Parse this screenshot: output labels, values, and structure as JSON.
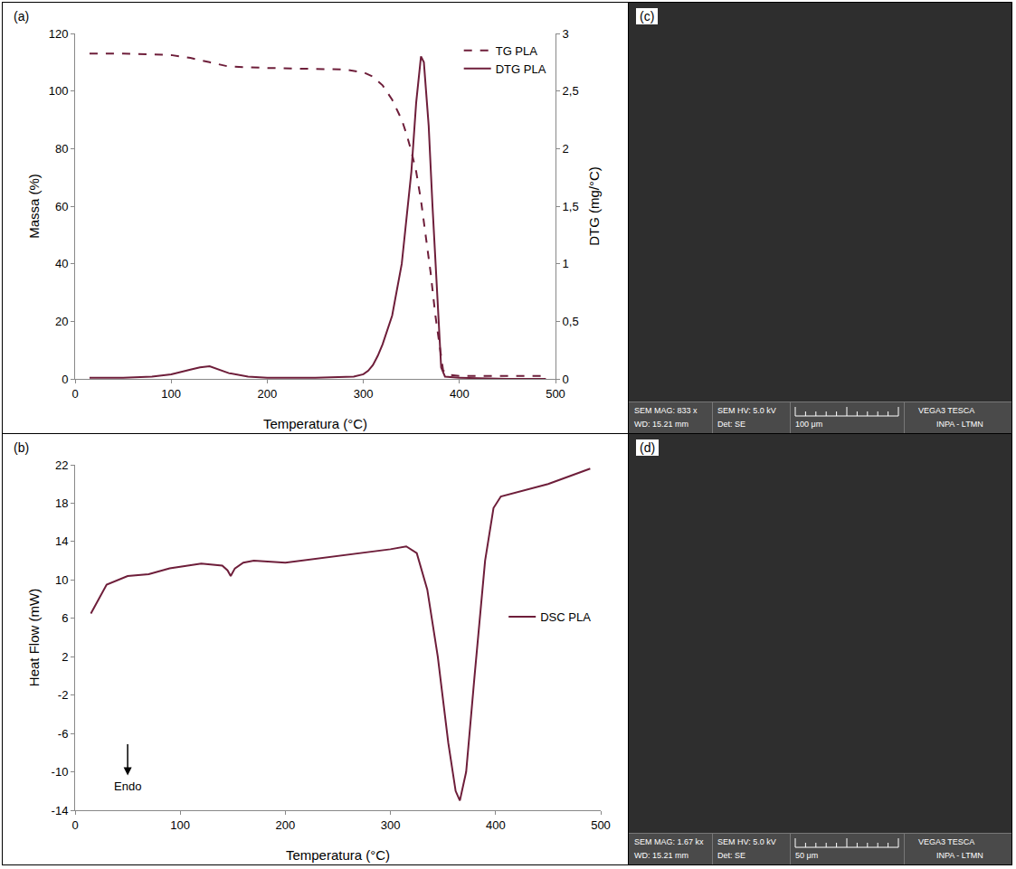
{
  "chart_data": [
    {
      "type": "line",
      "panel": "(a)",
      "x_label": "Temperatura (°C)",
      "y_label": "Massa (%)",
      "y2_label": "DTG (mg/°C)",
      "xlim": [
        0,
        500
      ],
      "xticks": [
        0,
        100,
        200,
        300,
        400,
        500
      ],
      "ylim": [
        0,
        120
      ],
      "yticks": [
        0,
        20,
        40,
        60,
        80,
        100,
        120
      ],
      "y2lim": [
        0,
        3
      ],
      "y2ticks": [
        0,
        {
          "value": 0.5,
          "label": "0,5"
        },
        1,
        {
          "value": 1.5,
          "label": "1,5"
        },
        2,
        {
          "value": 2.5,
          "label": "2,5"
        },
        3
      ],
      "grid": false,
      "legend": "upper right",
      "series": [
        {
          "name": "TG PLA",
          "color": "#6e1e3a",
          "line_style": "dashed",
          "x": [
            15,
            50,
            100,
            120,
            140,
            160,
            200,
            250,
            280,
            300,
            310,
            320,
            330,
            340,
            345,
            350,
            355,
            360,
            365,
            370,
            375,
            380,
            383,
            388,
            400,
            450,
            490
          ],
          "values": [
            113,
            113,
            112.5,
            111.5,
            110,
            108.5,
            108,
            107.8,
            107.5,
            106.5,
            105,
            102,
            97,
            90,
            85,
            79,
            72,
            62,
            50,
            37,
            22,
            10,
            3,
            1.5,
            1,
            1,
            1
          ]
        },
        {
          "name": "DTG PLA",
          "color": "#6e1e3a",
          "line_style": "solid",
          "axis": "y2",
          "x": [
            15,
            50,
            80,
            100,
            120,
            130,
            140,
            150,
            160,
            180,
            200,
            250,
            290,
            300,
            305,
            310,
            315,
            320,
            330,
            340,
            350,
            355,
            360,
            363,
            368,
            372,
            377,
            381,
            385,
            400,
            450,
            490
          ],
          "values": [
            0.01,
            0.01,
            0.02,
            0.04,
            0.08,
            0.1,
            0.11,
            0.08,
            0.05,
            0.02,
            0.01,
            0.01,
            0.02,
            0.04,
            0.07,
            0.12,
            0.2,
            0.3,
            0.55,
            1.0,
            1.8,
            2.4,
            2.8,
            2.75,
            2.2,
            1.5,
            0.7,
            0.1,
            0.02,
            0.01,
            0.0,
            0.0
          ]
        }
      ]
    },
    {
      "type": "line",
      "panel": "(b)",
      "x_label": "Temperatura (°C)",
      "y_label": "Heat Flow (mW)",
      "xlim": [
        0,
        500
      ],
      "xticks": [
        0,
        100,
        200,
        300,
        400,
        500
      ],
      "ylim": [
        -14,
        22
      ],
      "yticks": [
        -14,
        -10,
        -6,
        -2,
        2,
        6,
        10,
        14,
        18,
        22
      ],
      "grid": false,
      "legend": "right",
      "annotations": [
        {
          "text": "Endo",
          "x": 50,
          "y": -11.5,
          "arrow": "down"
        }
      ],
      "series": [
        {
          "name": "DSC PLA",
          "color": "#6e1e3a",
          "line_style": "solid",
          "x": [
            15,
            30,
            50,
            70,
            90,
            120,
            140,
            145,
            148,
            152,
            160,
            170,
            200,
            250,
            300,
            315,
            325,
            335,
            345,
            355,
            362,
            366,
            372,
            380,
            390,
            398,
            405,
            450,
            490
          ],
          "values": [
            6.5,
            9.5,
            10.4,
            10.6,
            11.2,
            11.7,
            11.5,
            11,
            10.4,
            11.2,
            11.8,
            12,
            11.8,
            12.5,
            13.2,
            13.5,
            12.8,
            9,
            2,
            -7,
            -12,
            -13,
            -10,
            0,
            12,
            17.5,
            18.7,
            20,
            21.6
          ]
        }
      ]
    }
  ],
  "images": [
    {
      "panel": "(c)",
      "mag": "SEM MAG: 833 x",
      "hv": "SEM HV: 5.0 kV",
      "wd": "WD: 15.21 mm",
      "det": "Det: SE",
      "scale": "100 μm",
      "brand": "VEGA3 TESCA",
      "lab": "INPA - LTMN"
    },
    {
      "panel": "(d)",
      "mag": "SEM MAG: 1.67 kx",
      "hv": "SEM HV: 5.0 kV",
      "wd": "WD: 15.21 mm",
      "det": "Det: SE",
      "scale": "50 μm",
      "brand": "VEGA3 TESCA",
      "lab": "INPA - LTMN"
    }
  ]
}
